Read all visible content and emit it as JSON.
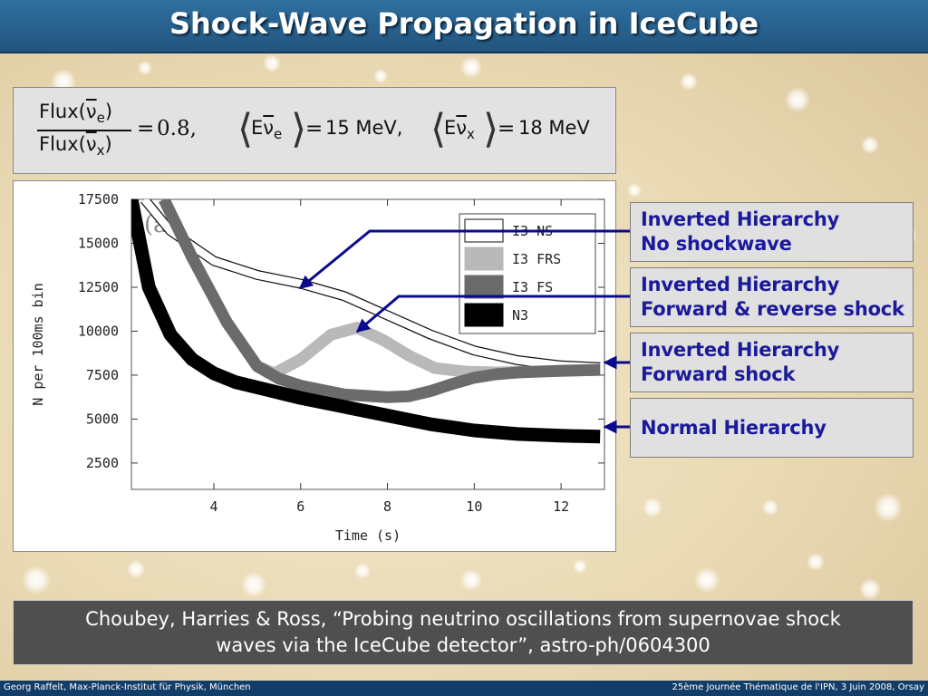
{
  "slide": {
    "title": "Shock-Wave Propagation in IceCube",
    "footer_left": "Georg Raffelt, Max-Planck-Institut für Physik, München",
    "footer_right": "25ème Journée Thématique de l'IPN, 3 Juin 2008, Orsay",
    "citation_line1": "Choubey, Harries & Ross, “Probing neutrino oscillations from supernovae shock",
    "citation_line2": "waves via the IceCube detector”, astro-ph/0604300"
  },
  "formula": {
    "flux_label": "Flux",
    "ratio_value": "0.8,",
    "equals": "=",
    "energy_symbol": "E",
    "e_value": "15 MeV,",
    "x_value": "18 MeV",
    "sub_e": "e",
    "sub_x": "x"
  },
  "callouts": [
    {
      "line1": "Inverted Hierarchy",
      "line2": "No shockwave"
    },
    {
      "line1": "Inverted Hierarchy",
      "line2": "Forward & reverse shock"
    },
    {
      "line1": "Inverted Hierarchy",
      "line2": "Forward shock"
    },
    {
      "line1": "Normal Hierarchy",
      "line2": ""
    }
  ],
  "colors": {
    "arrow": "#0a0a8c",
    "title_bar": "#2a6494",
    "footer": "#123d68"
  },
  "chart_data": {
    "type": "line",
    "panel_label": "(a)",
    "xlabel": "Time (s)",
    "ylabel": "N per 100ms bin",
    "xlim": [
      2.1,
      13.0
    ],
    "ylim": [
      1000,
      17500
    ],
    "x_ticks": [
      4,
      6,
      8,
      10,
      12
    ],
    "y_ticks": [
      2500,
      5000,
      7500,
      10000,
      12500,
      15000,
      17500
    ],
    "legend_position": "top-right",
    "series": [
      {
        "name": "I3 NS",
        "style": "outline",
        "x": [
          2.4,
          3,
          4,
          5,
          6,
          7,
          8,
          9,
          10,
          11,
          12,
          12.9
        ],
        "y": [
          17500,
          15700,
          14000,
          13200,
          12700,
          12000,
          10900,
          9800,
          8900,
          8350,
          8050,
          7950
        ]
      },
      {
        "name": "I3 FRS",
        "style": "light-gray",
        "x": [
          2.85,
          3.5,
          4.3,
          5.0,
          5.4,
          6.0,
          6.7,
          7.3,
          7.9,
          8.5,
          9.1,
          9.8,
          10.5,
          11.3,
          12.2,
          12.9
        ],
        "y": [
          17500,
          14200,
          10500,
          8000,
          7600,
          8400,
          9800,
          10200,
          9500,
          8600,
          7900,
          7700,
          7650,
          7700,
          7750,
          7800
        ]
      },
      {
        "name": "I3 FS",
        "style": "dark-gray",
        "x": [
          2.85,
          3.5,
          4.3,
          5.0,
          5.5,
          6.0,
          7.0,
          8.0,
          8.5,
          9.0,
          9.5,
          10.0,
          10.5,
          11.0,
          12.0,
          12.9
        ],
        "y": [
          17500,
          14200,
          10500,
          8000,
          7300,
          6900,
          6400,
          6250,
          6300,
          6600,
          7000,
          7350,
          7550,
          7650,
          7750,
          7800
        ]
      },
      {
        "name": "N3",
        "style": "black",
        "x": [
          2.1,
          2.5,
          3.0,
          3.5,
          4.0,
          4.5,
          5.0,
          6.0,
          7.0,
          8.0,
          9.0,
          10.0,
          11.0,
          12.0,
          12.9
        ],
        "y": [
          17500,
          12500,
          9800,
          8400,
          7600,
          7100,
          6800,
          6200,
          5700,
          5200,
          4700,
          4350,
          4150,
          4050,
          4000
        ]
      }
    ]
  }
}
